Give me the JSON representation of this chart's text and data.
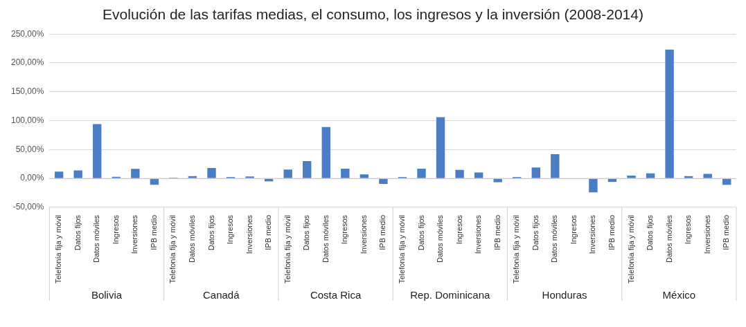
{
  "chart_data": {
    "type": "bar",
    "title": "Evolución de las tarifas medias, el consumo, los ingresos y la inversión (2008-2014)",
    "categories": [
      "Telefonía fija y móvil",
      "Datos fijos",
      "Datos móviles",
      "Ingresos",
      "Inversiones",
      "IPB medio",
      "Telefonía fija y móvil",
      "Datos móviles",
      "Datos fijos",
      "Ingresos",
      "Inversiones",
      "IPB medio",
      "Telefonía fija y móvil",
      "Datos fijos",
      "Datos móviles",
      "Ingresos",
      "Inversiones",
      "IPB medio",
      "Telefonía fija y móvil",
      "Datos fijos",
      "Datos móviles",
      "Ingresos",
      "Inversiones",
      "IPB medio",
      "Telefonía fija y móvil",
      "Datos fijos",
      "Datos móviles",
      "Ingresos",
      "Inversiones",
      "IPB medio",
      "Telefonía fija y móvil",
      "Datos fijos",
      "Datos móviles",
      "Ingresos",
      "Inversiones",
      "IPB medio"
    ],
    "values": [
      12,
      14,
      94,
      3,
      16.5,
      -11,
      1.5,
      4,
      18,
      2.5,
      3.5,
      -5,
      15.5,
      30,
      89,
      17,
      7,
      -9.5,
      2.5,
      17,
      106,
      15,
      10.5,
      -6.5,
      2.5,
      19,
      42,
      0,
      -24,
      -6,
      5,
      9,
      223,
      4,
      8,
      -11
    ],
    "color": "#4a7dc4",
    "annotations": [
      "Bolivia",
      "Canadá",
      "Costa Rica",
      "Rep. Dominicana",
      "Honduras",
      "México"
    ],
    "ylim": [
      -50,
      250
    ],
    "yticks": [
      {
        "value": -50,
        "label": "-50,00%"
      },
      {
        "value": 0,
        "label": "0,00%"
      },
      {
        "value": 50,
        "label": "50,00%"
      },
      {
        "value": 100,
        "label": "100,00%"
      },
      {
        "value": 150,
        "label": "150,00%"
      },
      {
        "value": 200,
        "label": "200,00%"
      },
      {
        "value": 250,
        "label": "250,00%"
      }
    ],
    "grid": "y",
    "legend": false
  }
}
